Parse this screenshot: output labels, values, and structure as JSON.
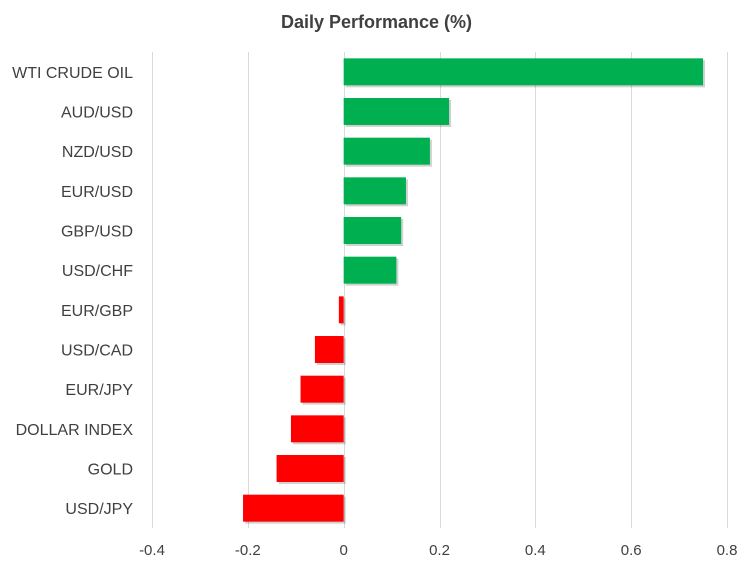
{
  "chart_data": {
    "type": "bar",
    "orientation": "horizontal",
    "title": "Daily Performance (%)",
    "xlabel": "",
    "ylabel": "",
    "categories": [
      "WTI CRUDE OIL",
      "AUD/USD",
      "NZD/USD",
      "EUR/USD",
      "GBP/USD",
      "USD/CHF",
      "EUR/GBP",
      "USD/CAD",
      "EUR/JPY",
      "DOLLAR INDEX",
      "GOLD",
      "USD/JPY"
    ],
    "values": [
      0.75,
      0.22,
      0.18,
      0.13,
      0.12,
      0.11,
      -0.01,
      -0.06,
      -0.09,
      -0.11,
      -0.14,
      -0.21
    ],
    "xlim": [
      -0.4,
      0.8
    ],
    "xticks": [
      -0.4,
      -0.2,
      0,
      0.2,
      0.4,
      0.6,
      0.8
    ],
    "xtick_labels": [
      "-0.4",
      "-0.2",
      "0",
      "0.2",
      "0.4",
      "0.6",
      "0.8"
    ],
    "grid": "vertical",
    "legend": "none",
    "colors": {
      "positive": "#00B050",
      "negative": "#FF0000",
      "grid": "#D9D9D9",
      "text": "#404040"
    }
  }
}
